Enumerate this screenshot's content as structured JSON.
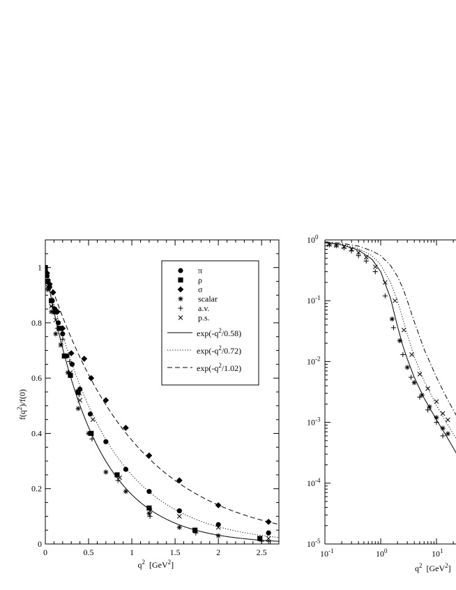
{
  "chart_data": [
    {
      "type": "scatter",
      "xlabel": "q",
      "xlabel_sup": "2",
      "xlabel_units": "[GeV",
      "xlabel_units_sup": "2",
      "xlabel_close": "]",
      "ylabel": "f(q",
      "ylabel_sup": "2",
      "ylabel_close": ")/f(0)",
      "xlim": [
        0,
        2.7
      ],
      "ylim": [
        0,
        1.1
      ],
      "xticks": [
        "0",
        "0.5",
        "1",
        "1.5",
        "2",
        "2.5"
      ],
      "yticks": [
        "0",
        "0.2",
        "0.4",
        "0.6",
        "0.8",
        "1"
      ],
      "grid": false,
      "legend_position": "top-right",
      "series": [
        {
          "name": "π",
          "marker": "circle",
          "x": [
            0,
            0.02,
            0.05,
            0.08,
            0.11,
            0.15,
            0.2,
            0.25,
            0.31,
            0.4,
            0.52,
            0.7,
            0.93,
            1.2,
            1.55,
            2.0,
            2.58
          ],
          "y": [
            1.0,
            0.97,
            0.93,
            0.88,
            0.85,
            0.8,
            0.76,
            0.68,
            0.65,
            0.56,
            0.47,
            0.37,
            0.27,
            0.19,
            0.12,
            0.07,
            0.04
          ]
        },
        {
          "name": "ρ",
          "marker": "square",
          "x": [
            0,
            0.03,
            0.07,
            0.11,
            0.16,
            0.22,
            0.29,
            0.38,
            0.53,
            0.83,
            1.2,
            1.73,
            2.48
          ],
          "y": [
            1.0,
            0.95,
            0.88,
            0.84,
            0.78,
            0.68,
            0.61,
            0.55,
            0.4,
            0.25,
            0.13,
            0.05,
            0.02
          ]
        },
        {
          "name": "σ",
          "marker": "diamond",
          "x": [
            0,
            0.02,
            0.05,
            0.09,
            0.14,
            0.2,
            0.3,
            0.45,
            0.53,
            0.7,
            0.93,
            1.2,
            1.55,
            2.0,
            2.58
          ],
          "y": [
            1.0,
            0.98,
            0.94,
            0.91,
            0.84,
            0.78,
            0.69,
            0.67,
            0.6,
            0.52,
            0.42,
            0.32,
            0.23,
            0.14,
            0.08
          ]
        },
        {
          "name": "scalar",
          "marker": "asterisk",
          "x": [
            0,
            0.03,
            0.07,
            0.12,
            0.18,
            0.26,
            0.38,
            0.5,
            0.7,
            0.93,
            1.2,
            1.55,
            2.0
          ],
          "y": [
            0.98,
            0.92,
            0.84,
            0.76,
            0.72,
            0.62,
            0.49,
            0.4,
            0.26,
            0.19,
            0.11,
            0.06,
            0.03
          ]
        },
        {
          "name": "a.v.",
          "marker": "plus",
          "x": [
            0,
            0.04,
            0.08,
            0.14,
            0.2,
            0.28,
            0.39,
            0.54,
            0.84,
            1.21,
            1.74,
            2.5,
            2.58
          ],
          "y": [
            0.99,
            0.93,
            0.86,
            0.78,
            0.74,
            0.66,
            0.54,
            0.38,
            0.23,
            0.1,
            0.04,
            0.01,
            0.01
          ]
        },
        {
          "name": "p.s.",
          "marker": "cross",
          "x": [
            0,
            0.03,
            0.07,
            0.12,
            0.18,
            0.29,
            0.4,
            0.55,
            0.86,
            1.21,
            1.55,
            2.0,
            2.58
          ],
          "y": [
            0.98,
            0.93,
            0.86,
            0.81,
            0.72,
            0.62,
            0.52,
            0.45,
            0.24,
            0.12,
            0.1,
            0.06,
            0.02
          ]
        },
        {
          "name": "exp(-q",
          "name_sup": "2",
          "name_tail": "/0.58)",
          "type": "line",
          "dash": "solid",
          "function": "exp(-x/0.58)"
        },
        {
          "name": "exp(-q",
          "name_sup": "2",
          "name_tail": "/0.72)",
          "type": "line",
          "dash": "dotted",
          "function": "exp(-x/0.72)"
        },
        {
          "name": "exp(-q",
          "name_sup": "2",
          "name_tail": "/1.02)",
          "type": "line",
          "dash": "dashed",
          "function": "exp(-x/1.02)"
        }
      ]
    },
    {
      "type": "line",
      "xscale": "log",
      "yscale": "log",
      "xlabel": "q",
      "xlabel_sup": "2",
      "xlabel_units": "[GeV",
      "xlabel_units_sup": "2",
      "xlabel_close": "]",
      "xlim": [
        0.1,
        30
      ],
      "ylim": [
        1e-05,
        1
      ],
      "xticks": [
        {
          "base": "10",
          "exp": "-1"
        },
        {
          "base": "10",
          "exp": "0"
        },
        {
          "base": "10",
          "exp": "1"
        }
      ],
      "yticks": [
        {
          "base": "10",
          "exp": "-5"
        },
        {
          "base": "10",
          "exp": "-4"
        },
        {
          "base": "10",
          "exp": "-3"
        },
        {
          "base": "10",
          "exp": "-2"
        },
        {
          "base": "10",
          "exp": "-1"
        },
        {
          "base": "10",
          "exp": "0"
        }
      ],
      "grid": false,
      "series": [
        {
          "name": "data-plus",
          "marker": "plus",
          "x": [
            0.12,
            0.16,
            0.22,
            0.3,
            0.4,
            0.55,
            0.8,
            1.2,
            1.7,
            2.5,
            3.5,
            5,
            7,
            10,
            13
          ],
          "y": [
            0.83,
            0.8,
            0.74,
            0.66,
            0.55,
            0.45,
            0.3,
            0.12,
            0.036,
            0.013,
            0.0055,
            0.0026,
            0.0016,
            0.001,
            0.0006
          ]
        },
        {
          "name": "data-cross",
          "marker": "cross",
          "x": [
            0.12,
            0.16,
            0.22,
            0.3,
            0.4,
            0.55,
            0.8,
            1.2,
            1.8,
            2.6,
            3.6,
            5,
            7,
            10,
            13,
            16
          ],
          "y": [
            0.84,
            0.81,
            0.77,
            0.7,
            0.62,
            0.52,
            0.36,
            0.2,
            0.1,
            0.033,
            0.013,
            0.0062,
            0.0036,
            0.0022,
            0.0014,
            0.0011
          ]
        },
        {
          "name": "data-asterisk",
          "marker": "asterisk",
          "x": [
            1.6,
            2.2,
            3,
            4,
            5.5,
            7.5,
            10,
            13,
            16
          ],
          "y": [
            0.05,
            0.022,
            0.008,
            0.0045,
            0.0028,
            0.0018,
            0.0012,
            0.0008,
            0.00065
          ]
        },
        {
          "name": "fit-solid",
          "type": "line",
          "dash": "solid",
          "x": [
            0.1,
            0.2,
            0.4,
            0.7,
            1,
            1.5,
            2,
            2.5,
            3,
            4,
            6,
            10,
            15,
            20,
            30
          ],
          "y": [
            0.9,
            0.83,
            0.68,
            0.48,
            0.3,
            0.11,
            0.038,
            0.018,
            0.011,
            0.0055,
            0.0025,
            0.0011,
            0.0006,
            0.00038,
            0.0002
          ]
        },
        {
          "name": "fit-dotted",
          "type": "line",
          "dash": "dotted",
          "x": [
            0.1,
            0.2,
            0.4,
            0.7,
            1,
            1.5,
            2,
            2.5,
            3,
            4,
            6,
            10,
            15,
            20,
            30
          ],
          "y": [
            0.91,
            0.85,
            0.72,
            0.55,
            0.39,
            0.2,
            0.1,
            0.05,
            0.028,
            0.012,
            0.0048,
            0.0019,
            0.001,
            0.00065,
            0.00035
          ]
        },
        {
          "name": "fit-dashdot",
          "type": "line",
          "dash": "dashdot",
          "x": [
            0.1,
            0.2,
            0.4,
            0.7,
            1,
            1.5,
            2,
            2.5,
            3,
            4,
            6,
            10,
            15,
            20,
            30
          ],
          "y": [
            0.93,
            0.88,
            0.79,
            0.66,
            0.55,
            0.38,
            0.25,
            0.16,
            0.1,
            0.045,
            0.016,
            0.0055,
            0.0026,
            0.0016,
            0.0008
          ]
        }
      ]
    }
  ]
}
